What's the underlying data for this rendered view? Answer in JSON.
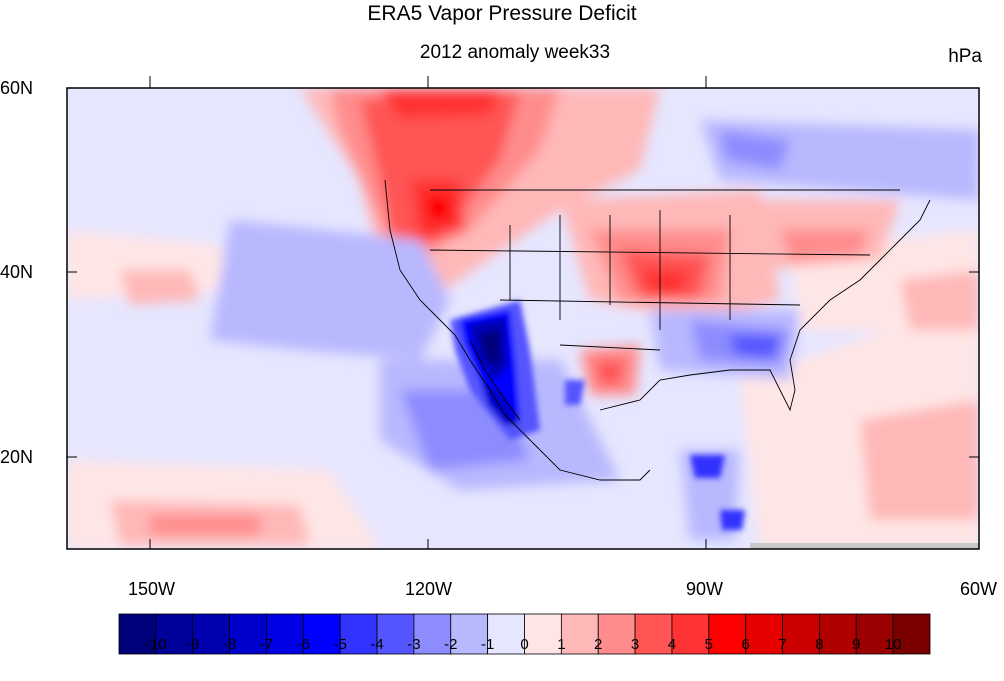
{
  "title": "ERA5 Vapor Pressure Deficit",
  "subtitle": "2012 anomaly week33",
  "units": "hPa",
  "axes": {
    "lat_ticks": [
      "60N",
      "40N",
      "20N"
    ],
    "lon_ticks": [
      "150W",
      "120W",
      "90W",
      "60W"
    ],
    "lat_range": [
      10,
      60
    ],
    "lon_range": [
      -159,
      -61
    ]
  },
  "colorbar": {
    "labels": [
      "-10",
      "-9",
      "-8",
      "-7",
      "-6",
      "-5",
      "-4",
      "-3",
      "-2",
      "-1",
      "0",
      "1",
      "2",
      "3",
      "4",
      "5",
      "6",
      "7",
      "8",
      "9",
      "10"
    ],
    "colors": [
      "#00007a",
      "#00009a",
      "#0000b0",
      "#0000cc",
      "#0000e6",
      "#0000ff",
      "#3333ff",
      "#5555ff",
      "#8c8cff",
      "#b8b8ff",
      "#e6e6ff",
      "#ffe6e6",
      "#ffb8b8",
      "#ff8c8c",
      "#ff5555",
      "#ff3333",
      "#ff0000",
      "#e60000",
      "#cc0000",
      "#b00000",
      "#9a0000",
      "#7a0000"
    ]
  }
}
